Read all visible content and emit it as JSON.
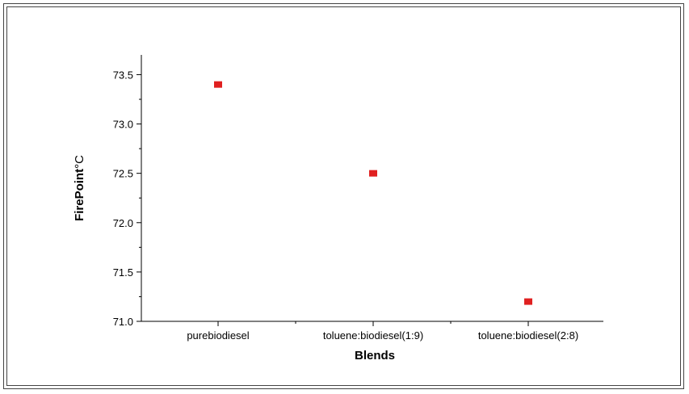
{
  "chart_data": {
    "type": "scatter",
    "categories": [
      "purebiodiesel",
      "toluene:biodiesel(1:9)",
      "toluene:biodiesel(2:8)"
    ],
    "series": [
      {
        "values": [
          73.4,
          72.5,
          71.2
        ]
      }
    ],
    "xlabel": "Blends",
    "ylabel_main": "FirePoint",
    "ylabel_unit": "°C",
    "ylim": [
      71.0,
      73.7
    ],
    "yticks": [
      71.0,
      71.5,
      72.0,
      72.5,
      73.0,
      73.5
    ],
    "ytick_labels": [
      "71.0",
      "71.5",
      "72.0",
      "72.5",
      "73.0",
      "73.5"
    ],
    "grid": false,
    "marker_color": "#e02020"
  }
}
